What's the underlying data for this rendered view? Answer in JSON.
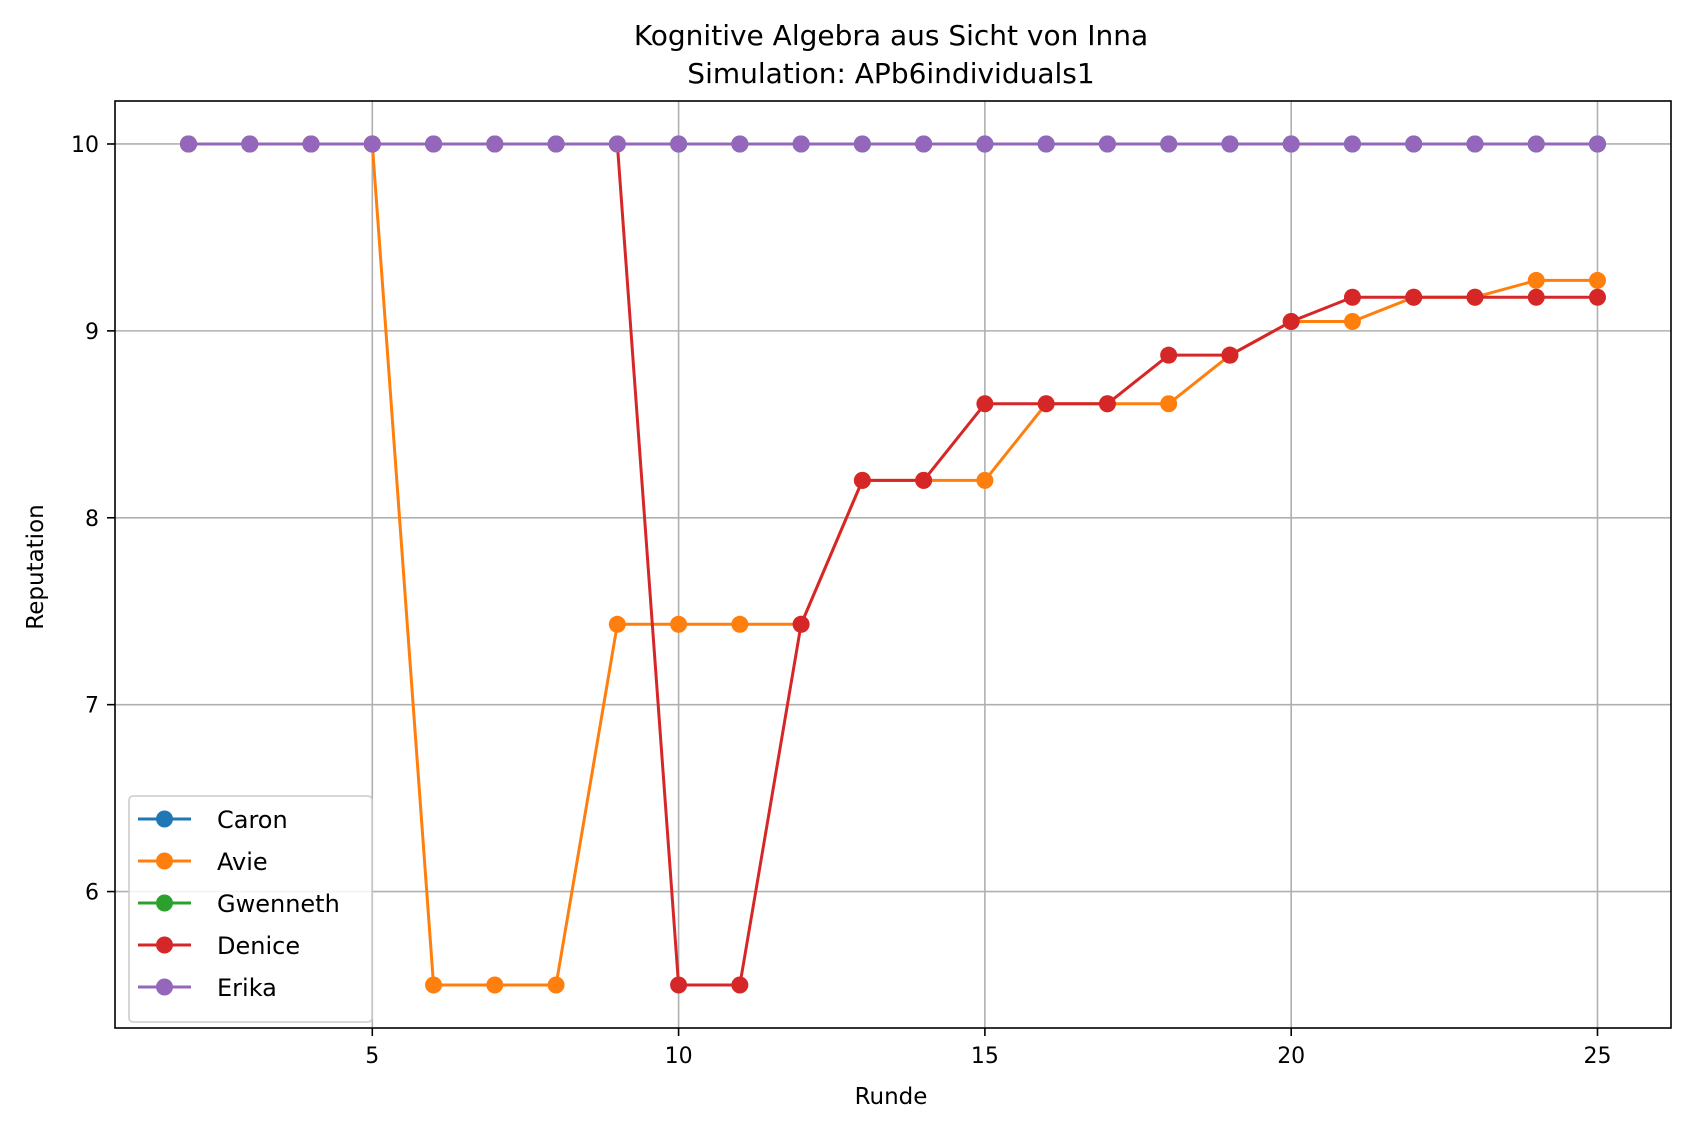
{
  "chart_data": {
    "type": "line",
    "title": "Kognitive Algebra aus Sicht von Inna",
    "subtitle": "Simulation: APb6individuals1",
    "xlabel": "Runde",
    "ylabel": "Reputation",
    "xlim": [
      0.8,
      26.2
    ],
    "ylim": [
      5.27,
      10.23
    ],
    "xticks": [
      5,
      10,
      15,
      20,
      25
    ],
    "yticks": [
      6,
      7,
      8,
      9,
      10
    ],
    "grid": true,
    "legend_position": "lower-left",
    "series": [
      {
        "name": "Caron",
        "color": "#1f77b4",
        "x": [
          2,
          3,
          4,
          5,
          6,
          7,
          8,
          9,
          10,
          11,
          12,
          13,
          14,
          15,
          16,
          17,
          18,
          19,
          20,
          21,
          22,
          23,
          24,
          25
        ],
        "y": [
          10,
          10,
          10,
          10,
          10,
          10,
          10,
          10,
          10,
          10,
          10,
          10,
          10,
          10,
          10,
          10,
          10,
          10,
          10,
          10,
          10,
          10,
          10,
          10
        ]
      },
      {
        "name": "Avie",
        "color": "#ff7f0e",
        "x": [
          2,
          3,
          4,
          5,
          6,
          7,
          8,
          9,
          10,
          11,
          12,
          13,
          14,
          15,
          16,
          17,
          18,
          19,
          20,
          21,
          22,
          23,
          24,
          25
        ],
        "y": [
          10,
          10,
          10,
          10,
          5.5,
          5.5,
          5.5,
          7.43,
          7.43,
          7.43,
          7.43,
          8.2,
          8.2,
          8.2,
          8.61,
          8.61,
          8.61,
          8.87,
          9.05,
          9.05,
          9.18,
          9.18,
          9.27,
          9.27
        ]
      },
      {
        "name": "Gwenneth",
        "color": "#2ca02c",
        "x": [
          2,
          3,
          4,
          5,
          6,
          7,
          8,
          9,
          10,
          11,
          12,
          13,
          14,
          15,
          16,
          17,
          18,
          19,
          20,
          21,
          22,
          23,
          24,
          25
        ],
        "y": [
          10,
          10,
          10,
          10,
          10,
          10,
          10,
          10,
          10,
          10,
          10,
          10,
          10,
          10,
          10,
          10,
          10,
          10,
          10,
          10,
          10,
          10,
          10,
          10
        ]
      },
      {
        "name": "Denice",
        "color": "#d62728",
        "x": [
          2,
          3,
          4,
          5,
          6,
          7,
          8,
          9,
          10,
          11,
          12,
          13,
          14,
          15,
          16,
          17,
          18,
          19,
          20,
          21,
          22,
          23,
          24,
          25
        ],
        "y": [
          10,
          10,
          10,
          10,
          10,
          10,
          10,
          10,
          5.5,
          5.5,
          7.43,
          8.2,
          8.2,
          8.61,
          8.61,
          8.61,
          8.87,
          8.87,
          9.05,
          9.18,
          9.18,
          9.18,
          9.18,
          9.18
        ]
      },
      {
        "name": "Erika",
        "color": "#9467bd",
        "x": [
          2,
          3,
          4,
          5,
          6,
          7,
          8,
          9,
          10,
          11,
          12,
          13,
          14,
          15,
          16,
          17,
          18,
          19,
          20,
          21,
          22,
          23,
          24,
          25
        ],
        "y": [
          10,
          10,
          10,
          10,
          10,
          10,
          10,
          10,
          10,
          10,
          10,
          10,
          10,
          10,
          10,
          10,
          10,
          10,
          10,
          10,
          10,
          10,
          10,
          10
        ]
      }
    ]
  }
}
